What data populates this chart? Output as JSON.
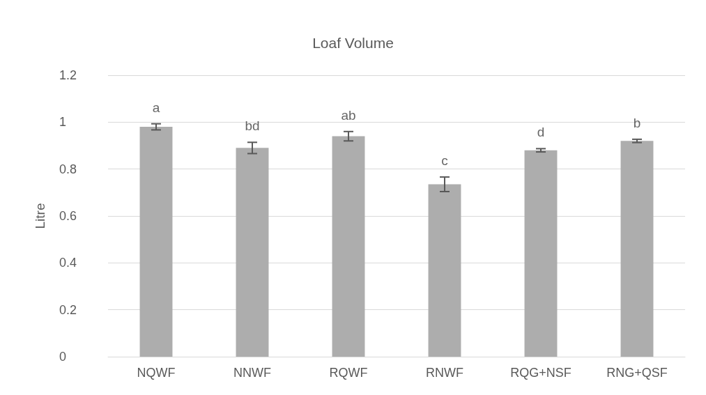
{
  "chart_data": {
    "type": "bar",
    "title": "Loaf Volume",
    "ylabel": "Litre",
    "categories": [
      "NQWF",
      "NNWF",
      "RQWF",
      "RNWF",
      "RQG+NSF",
      "RNG+QSF"
    ],
    "values": [
      0.98,
      0.89,
      0.94,
      0.735,
      0.88,
      0.92
    ],
    "errors": [
      0.013,
      0.024,
      0.02,
      0.031,
      0.007,
      0.007
    ],
    "color": "#adadad",
    "ylim": [
      0,
      1.2
    ],
    "yticks": [
      0,
      0.2,
      0.4,
      0.6,
      0.8,
      1,
      1.2
    ],
    "grid": "y",
    "annotations": [
      "a",
      "bd",
      "ab",
      "c",
      "d",
      "b"
    ]
  }
}
